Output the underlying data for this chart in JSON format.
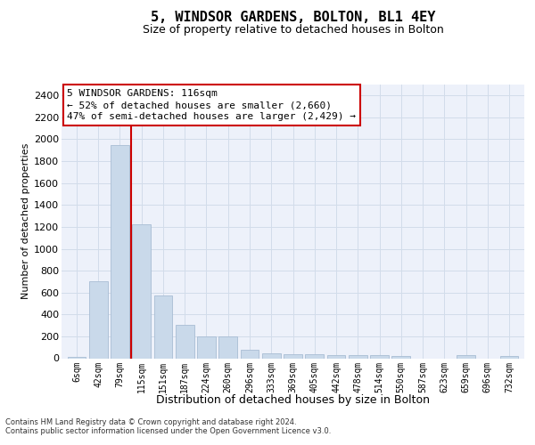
{
  "title": "5, WINDSOR GARDENS, BOLTON, BL1 4EY",
  "subtitle": "Size of property relative to detached houses in Bolton",
  "xlabel": "Distribution of detached houses by size in Bolton",
  "ylabel": "Number of detached properties",
  "footnote1": "Contains HM Land Registry data © Crown copyright and database right 2024.",
  "footnote2": "Contains public sector information licensed under the Open Government Licence v3.0.",
  "annotation_line1": "5 WINDSOR GARDENS: 116sqm",
  "annotation_line2": "← 52% of detached houses are smaller (2,660)",
  "annotation_line3": "47% of semi-detached houses are larger (2,429) →",
  "bar_color": "#c9d9ea",
  "bar_edge_color": "#a8bdd4",
  "red_line_x": 2.5,
  "categories": [
    "6sqm",
    "42sqm",
    "79sqm",
    "115sqm",
    "151sqm",
    "187sqm",
    "224sqm",
    "260sqm",
    "296sqm",
    "333sqm",
    "369sqm",
    "405sqm",
    "442sqm",
    "478sqm",
    "514sqm",
    "550sqm",
    "587sqm",
    "623sqm",
    "659sqm",
    "696sqm",
    "732sqm"
  ],
  "values": [
    15,
    700,
    1950,
    1220,
    575,
    305,
    200,
    200,
    80,
    45,
    40,
    40,
    30,
    25,
    25,
    20,
    0,
    0,
    25,
    0,
    20
  ],
  "ylim": [
    0,
    2500
  ],
  "yticks": [
    0,
    200,
    400,
    600,
    800,
    1000,
    1200,
    1400,
    1600,
    1800,
    2000,
    2200,
    2400
  ],
  "annotation_box_face": "#ffffff",
  "annotation_box_edge": "#cc0000",
  "grid_color": "#d2dcea",
  "ax_bg_color": "#edf1fa",
  "title_fontsize": 11,
  "subtitle_fontsize": 9,
  "ylabel_fontsize": 8,
  "xlabel_fontsize": 9,
  "tick_fontsize": 7,
  "annot_fontsize": 8,
  "footnote_fontsize": 6
}
